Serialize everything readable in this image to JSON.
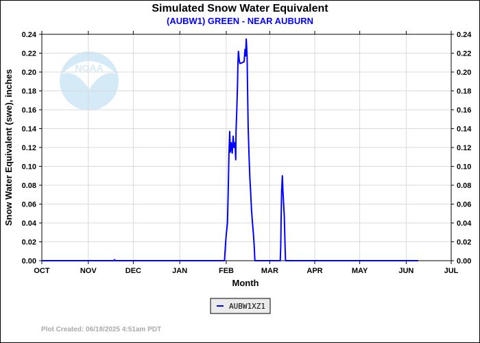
{
  "chart_data": {
    "type": "line",
    "title": "Simulated Snow Water Equivalent",
    "subtitle": "(AUBW1) GREEN - NEAR AUBURN",
    "xlabel": "Month",
    "ylabel": "Snow Water Equivalent (swe),  inches",
    "x_units": "days since Oct 1",
    "xlim": [
      0,
      273
    ],
    "ylim": [
      0,
      0.24
    ],
    "x_ticks": [
      {
        "label": "OCT",
        "day": 0
      },
      {
        "label": "NOV",
        "day": 31
      },
      {
        "label": "DEC",
        "day": 61
      },
      {
        "label": "JAN",
        "day": 92
      },
      {
        "label": "FEB",
        "day": 123
      },
      {
        "label": "MAR",
        "day": 152
      },
      {
        "label": "APR",
        "day": 182
      },
      {
        "label": "MAY",
        "day": 212
      },
      {
        "label": "JUN",
        "day": 243
      },
      {
        "label": "JUL",
        "day": 273
      }
    ],
    "y_ticks": [
      "0.00",
      "0.02",
      "0.04",
      "0.06",
      "0.08",
      "0.10",
      "0.12",
      "0.14",
      "0.16",
      "0.18",
      "0.20",
      "0.22",
      "0.24"
    ],
    "grid": true,
    "legend_position": "bottom-center",
    "series": [
      {
        "name": "AUBW1XZ1",
        "color": "#0000ff",
        "x": [
          0,
          48,
          48.5,
          49,
          121.8,
          122.5,
          123.0,
          123.8,
          124.2,
          124.8,
          125.3,
          125.7,
          126.3,
          127.0,
          127.6,
          128.2,
          128.8,
          129.3,
          129.5,
          130.0,
          130.5,
          130.8,
          131.1,
          131.7,
          132.1,
          133.7,
          134.9,
          135.5,
          135.9,
          136.3,
          136.6,
          136.9,
          137.2,
          137.6,
          138.2,
          138.7,
          139.3,
          139.8,
          140.5,
          141.1,
          141.6,
          142.1,
          159.0,
          159.3,
          159.6,
          159.9,
          160.4,
          160.8,
          161.7,
          162.2,
          162.5,
          251.0
        ],
        "y": [
          0,
          0,
          0.001,
          0,
          0,
          0.018,
          0.028,
          0.04,
          0.067,
          0.113,
          0.137,
          0.115,
          0.125,
          0.114,
          0.132,
          0.12,
          0.125,
          0.107,
          0.137,
          0.159,
          0.187,
          0.21,
          0.222,
          0.212,
          0.209,
          0.21,
          0.211,
          0.224,
          0.217,
          0.235,
          0.227,
          0.215,
          0.184,
          0.142,
          0.111,
          0.089,
          0.072,
          0.055,
          0.04,
          0.028,
          0.016,
          0,
          0,
          0.015,
          0.045,
          0.074,
          0.09,
          0.074,
          0.047,
          0.016,
          0,
          0
        ]
      }
    ],
    "footer": "Plot Created: 06/18/2025 4:51am PDT",
    "watermark": "NOAA"
  }
}
